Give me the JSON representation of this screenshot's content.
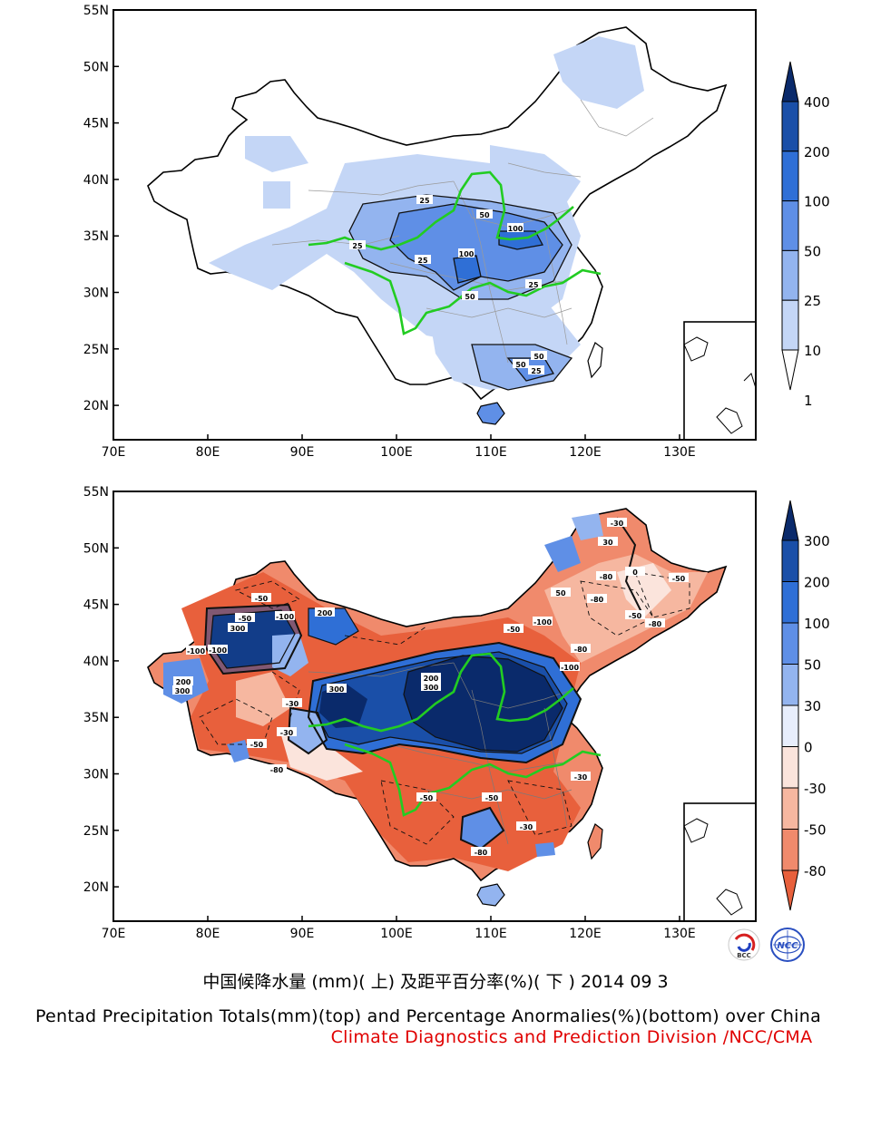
{
  "top_map": {
    "lat_labels": [
      "55N",
      "50N",
      "45N",
      "40N",
      "35N",
      "30N",
      "25N",
      "20N"
    ],
    "lon_labels": [
      "70E",
      "80E",
      "90E",
      "100E",
      "110E",
      "120E",
      "130E"
    ],
    "contour_labels": [
      "25",
      "50",
      "100",
      "100",
      "25",
      "50",
      "25",
      "25",
      "50",
      "25",
      "50"
    ],
    "legend": {
      "levels": [
        "400",
        "200",
        "100",
        "50",
        "25",
        "10",
        "1"
      ],
      "colors": [
        "#0a2a6b",
        "#1a4fa8",
        "#2f6fd6",
        "#5f8fe6",
        "#93b4ef",
        "#c4d6f6",
        "#ffffff"
      ]
    }
  },
  "bottom_map": {
    "lat_labels": [
      "55N",
      "50N",
      "45N",
      "40N",
      "35N",
      "30N",
      "25N",
      "20N"
    ],
    "lon_labels": [
      "70E",
      "80E",
      "90E",
      "100E",
      "110E",
      "120E",
      "130E"
    ],
    "contour_labels": [
      "-50",
      "-100",
      "200",
      "300",
      "-100",
      "-50",
      "200",
      "300",
      "-100",
      "-30",
      "200",
      "300",
      "300",
      "-30",
      "-50",
      "-80",
      "-80",
      "-50",
      "-80",
      "-100",
      "-50",
      "-30",
      "-80",
      "-50",
      "50",
      "0",
      "30",
      "-30",
      "-50",
      "-100",
      "-80",
      "-50",
      "-30",
      "-80"
    ],
    "legend": {
      "levels": [
        "300",
        "200",
        "100",
        "50",
        "30",
        "0",
        "-30",
        "-50",
        "-80"
      ],
      "colors": [
        "#0a2a6b",
        "#1a4fa8",
        "#2f6fd6",
        "#5f8fe6",
        "#93b4ef",
        "#e8eefc",
        "#fbe4dc",
        "#f6b7a0",
        "#f08a6c",
        "#e8603c"
      ]
    }
  },
  "logos": [
    "BCC",
    "NCC"
  ],
  "caption": {
    "chinese": "中国候降水量 (mm)( 上) 及距平百分率(%)( 下 ) 2014 09 3",
    "english": "Pentad Precipitation Totals(mm)(top) and Percentage Anormalies(%)(bottom) over China",
    "credit": "Climate Diagnostics and Prediction Division /NCC/CMA"
  }
}
